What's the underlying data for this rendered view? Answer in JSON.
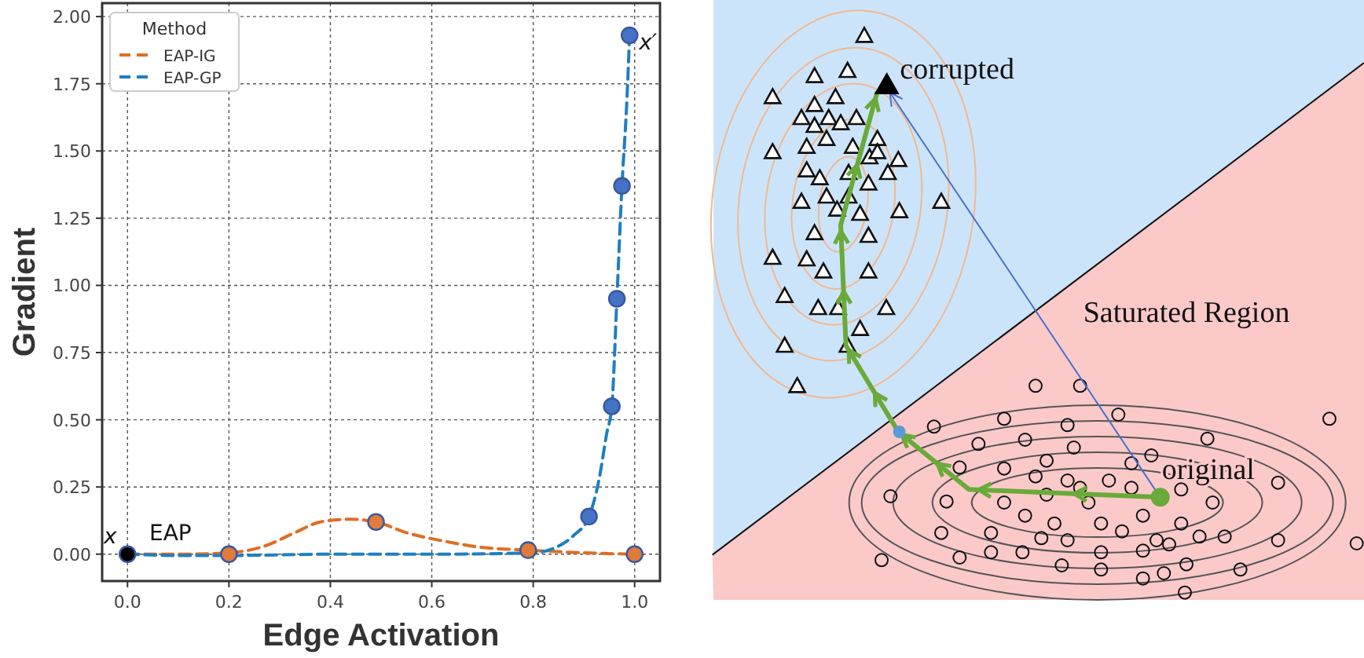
{
  "chart_data": [
    {
      "type": "line",
      "xlabel": "Edge Activation",
      "ylabel": "Gradient",
      "xlim": [
        -0.05,
        1.05
      ],
      "ylim": [
        -0.1,
        2.05
      ],
      "xticks": [
        {
          "value": 0,
          "label": "0.0"
        },
        {
          "value": 0.2,
          "label": "0.2"
        },
        {
          "value": 0.4,
          "label": "0.4"
        },
        {
          "value": 0.6,
          "label": "0.6"
        },
        {
          "value": 0.8,
          "label": "0.8"
        },
        {
          "value": 1,
          "label": "1.0"
        }
      ],
      "yticks": [
        {
          "value": 0,
          "label": "0.00"
        },
        {
          "value": 0.25,
          "label": "0.25"
        },
        {
          "value": 0.5,
          "label": "0.50"
        },
        {
          "value": 0.75,
          "label": "0.75"
        },
        {
          "value": 1,
          "label": "1.00"
        },
        {
          "value": 1.25,
          "label": "1.25"
        },
        {
          "value": 1.5,
          "label": "1.50"
        },
        {
          "value": 1.75,
          "label": "1.75"
        },
        {
          "value": 2,
          "label": "2.00"
        }
      ],
      "grid": true,
      "legend": "top left",
      "legend_title": "Method",
      "series": [
        {
          "name": "EAP-IG",
          "type": "line",
          "color": "#dd6e24",
          "line_style": "dashed",
          "x": [
            0,
            0.1,
            0.2,
            0.27,
            0.33,
            0.38,
            0.44,
            0.49,
            0.55,
            0.62,
            0.7,
            0.79,
            0.9,
            1.0
          ],
          "values": [
            0,
            0,
            0.005,
            0.03,
            0.08,
            0.12,
            0.13,
            0.12,
            0.08,
            0.05,
            0.025,
            0.015,
            0.005,
            0
          ]
        },
        {
          "name": "EAP-GP",
          "type": "line",
          "color": "#1f7fc0",
          "line_style": "dashed",
          "x": [
            0,
            0.1,
            0.2,
            0.4,
            0.6,
            0.8,
            0.85,
            0.88,
            0.91,
            0.93,
            0.945,
            0.955,
            0.965,
            0.975,
            0.985,
            0.99
          ],
          "values": [
            0,
            -0.005,
            -0.005,
            0,
            0,
            0.005,
            0.03,
            0.07,
            0.14,
            0.28,
            0.45,
            0.55,
            0.95,
            1.37,
            1.7,
            1.93
          ]
        },
        {
          "type": "scatter",
          "color": "#e07b39",
          "marker": "circle",
          "x": [
            0.2,
            0.49,
            0.79,
            1.0
          ],
          "values": [
            0,
            0.12,
            0.015,
            0
          ]
        },
        {
          "type": "scatter",
          "color": "#4472c4",
          "marker": "circle",
          "x": [
            0.91,
            0.955,
            0.965,
            0.975,
            0.99
          ],
          "values": [
            0.14,
            0.55,
            0.95,
            1.37,
            1.93
          ]
        },
        {
          "type": "scatter",
          "color": "#000000",
          "marker": "circle",
          "x": [
            0
          ],
          "values": [
            0
          ]
        }
      ],
      "annotations": [
        "x",
        "EAP",
        {
          "text": "x′",
          "x": 0.99,
          "y": 1.93
        }
      ]
    },
    {
      "type": "other",
      "annotations": [
        "corrupted",
        "Saturated Region",
        "original"
      ]
    }
  ]
}
